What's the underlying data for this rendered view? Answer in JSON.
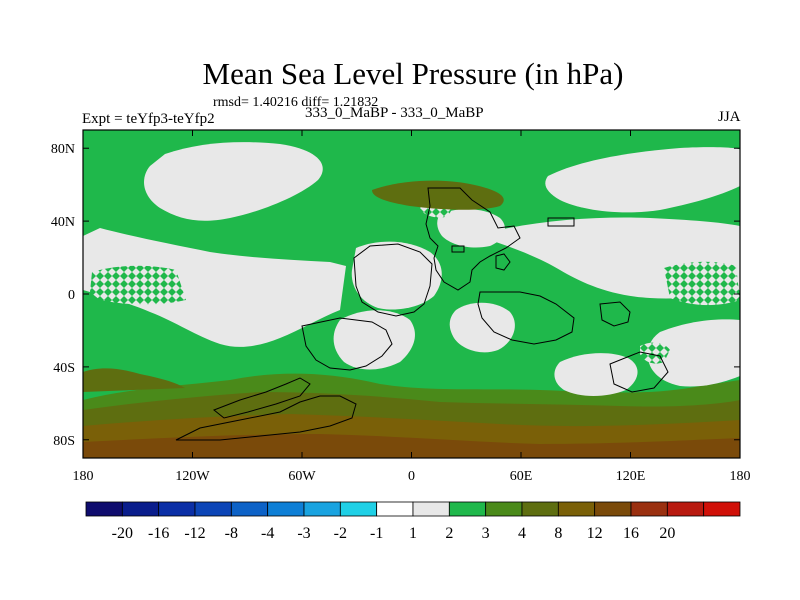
{
  "plot": {
    "title": "Mean Sea Level Pressure (in hPa)",
    "stats": "rmsd= 1.40216 diff= 1.21832",
    "experiment": "Expt = teYfp3-teYfp2",
    "runs": "333_0_MaBP - 333_0_MaBP",
    "season": "JJA"
  },
  "chart_data": {
    "type": "heatmap",
    "title": "Mean Sea Level Pressure (in hPa)",
    "x_ticks": [
      "180",
      "120W",
      "60W",
      "0",
      "60E",
      "120E",
      "180"
    ],
    "y_ticks": [
      "80N",
      "40N",
      "0",
      "40S",
      "80S"
    ],
    "colorbar": {
      "levels": [
        "-20",
        "-16",
        "-12",
        "-8",
        "-4",
        "-3",
        "-2",
        "-1",
        "1",
        "2",
        "3",
        "4",
        "8",
        "12",
        "16",
        "20"
      ],
      "colors": [
        "#0f0c6e",
        "#0a1d8c",
        "#0b2fa6",
        "#0c45b7",
        "#0d62c7",
        "#0e7fd6",
        "#19a3e0",
        "#1fd0e6",
        "#ffffff",
        "#e8e8e8",
        "#1fb84b",
        "#4a8a1a",
        "#5e6e10",
        "#7a6008",
        "#7a4a0a",
        "#9a3010",
        "#b81a10",
        "#d01008"
      ]
    },
    "colors": {
      "near_zero": "#e8e8e8",
      "plus_1_to_2": "#1fb84b",
      "plus_2_to_3": "#4a8a1a",
      "plus_3_to_4": "#5e6e10",
      "plus_4_to_8": "#7a6008",
      "plus_8_to_12": "#7a4a0a"
    }
  }
}
